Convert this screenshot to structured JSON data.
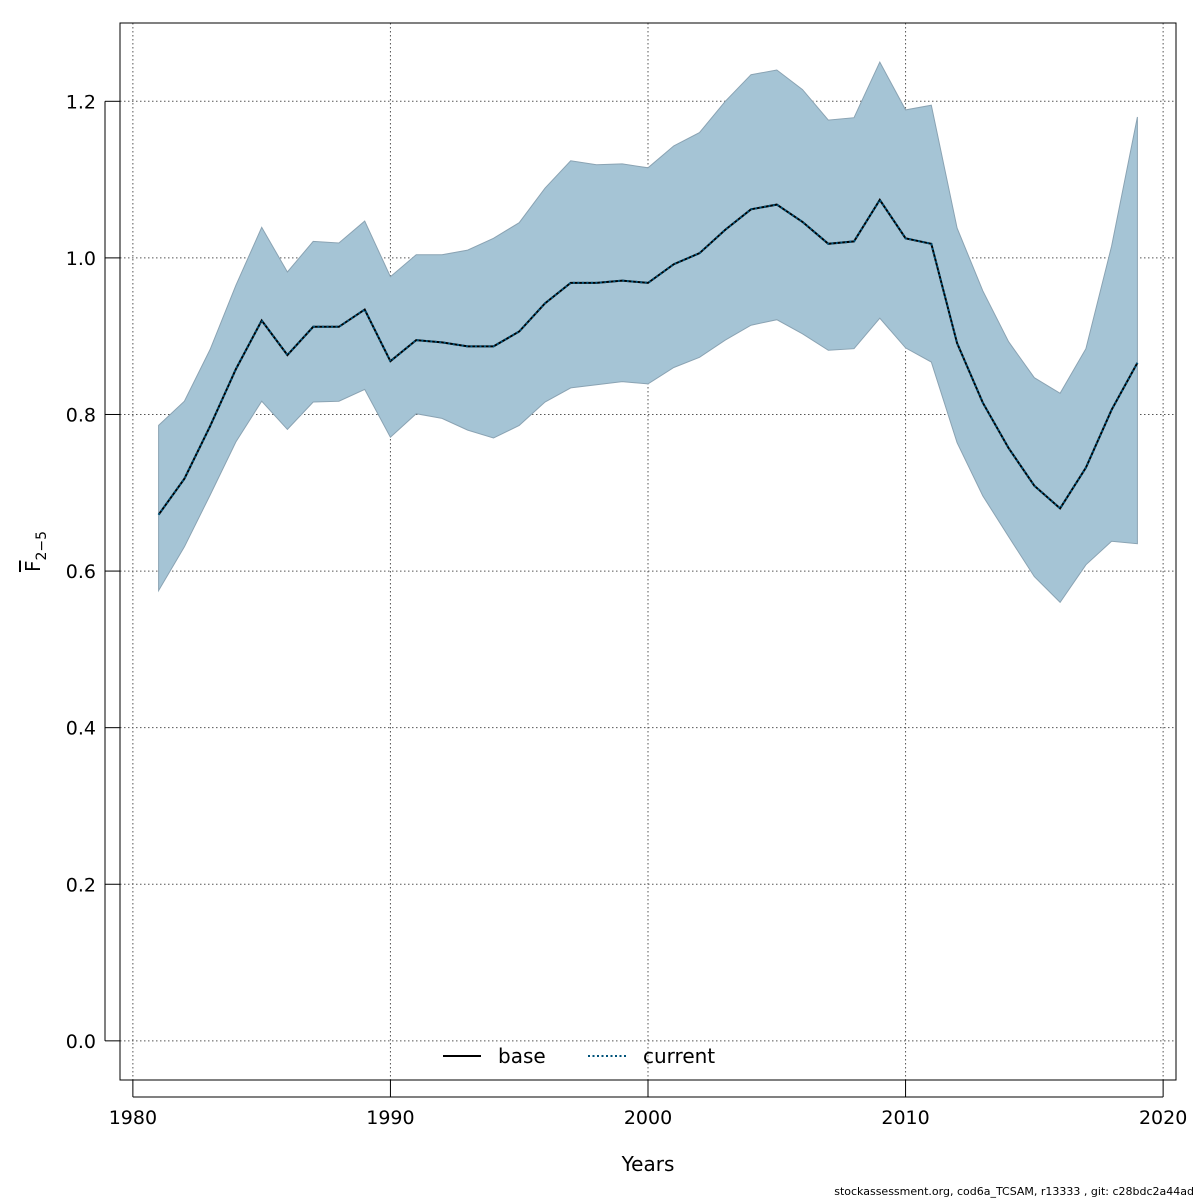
{
  "chart_data": {
    "type": "line",
    "xlabel": "Years",
    "ylabel": {
      "main": "F",
      "sub": "2−5"
    },
    "xlim": [
      1979.5,
      2020.5
    ],
    "ylim": [
      -0.05,
      1.3
    ],
    "x_ticks": [
      1980,
      1990,
      2000,
      2010,
      2020
    ],
    "y_ticks": [
      0.0,
      0.2,
      0.4,
      0.6,
      0.8,
      1.0,
      1.2
    ],
    "x_tick_labels": [
      "1980",
      "1990",
      "2000",
      "2010",
      "2020"
    ],
    "y_tick_labels": [
      "0.0",
      "0.2",
      "0.4",
      "0.6",
      "0.8",
      "1.0",
      "1.2"
    ],
    "grid": true,
    "legend_position": "bottom-center",
    "colors": {
      "band": "#a5c4d5",
      "band_edge": "#8aa3b3",
      "current": "#00537a",
      "base": "#000000",
      "grid": "#555555"
    },
    "x": [
      1981,
      1982,
      1983,
      1984,
      1985,
      1986,
      1987,
      1988,
      1989,
      1990,
      1991,
      1992,
      1993,
      1994,
      1995,
      1996,
      1997,
      1998,
      1999,
      2000,
      2001,
      2002,
      2003,
      2004,
      2005,
      2006,
      2007,
      2008,
      2009,
      2010,
      2011,
      2012,
      2013,
      2014,
      2015,
      2016,
      2017,
      2018,
      2019
    ],
    "series": [
      {
        "name": "base",
        "style": "solid",
        "values": [
          0.672,
          0.718,
          0.785,
          0.858,
          0.92,
          0.876,
          0.912,
          0.912,
          0.934,
          0.868,
          0.895,
          0.892,
          0.887,
          0.887,
          0.906,
          0.942,
          0.968,
          0.968,
          0.971,
          0.968,
          0.992,
          1.006,
          1.036,
          1.062,
          1.068,
          1.046,
          1.018,
          1.021,
          1.074,
          1.025,
          1.018,
          0.891,
          0.815,
          0.757,
          0.709,
          0.68,
          0.732,
          0.806,
          0.866
        ]
      },
      {
        "name": "current",
        "style": "dotted",
        "values": [
          0.672,
          0.718,
          0.785,
          0.858,
          0.92,
          0.876,
          0.912,
          0.912,
          0.934,
          0.868,
          0.895,
          0.892,
          0.887,
          0.887,
          0.906,
          0.942,
          0.968,
          0.968,
          0.971,
          0.968,
          0.992,
          1.006,
          1.036,
          1.062,
          1.068,
          1.046,
          1.018,
          1.021,
          1.074,
          1.025,
          1.018,
          0.891,
          0.815,
          0.757,
          0.709,
          0.68,
          0.732,
          0.806,
          0.866
        ]
      }
    ],
    "interval": {
      "lower": [
        0.575,
        0.631,
        0.697,
        0.765,
        0.817,
        0.781,
        0.816,
        0.817,
        0.832,
        0.771,
        0.801,
        0.795,
        0.78,
        0.77,
        0.786,
        0.816,
        0.834,
        0.838,
        0.842,
        0.839,
        0.86,
        0.873,
        0.895,
        0.914,
        0.921,
        0.903,
        0.882,
        0.884,
        0.923,
        0.885,
        0.867,
        0.764,
        0.696,
        0.644,
        0.593,
        0.56,
        0.608,
        0.638,
        0.635
      ],
      "upper": [
        0.786,
        0.817,
        0.883,
        0.965,
        1.039,
        0.982,
        1.021,
        1.019,
        1.047,
        0.976,
        1.004,
        1.004,
        1.01,
        1.025,
        1.045,
        1.089,
        1.124,
        1.119,
        1.12,
        1.115,
        1.143,
        1.16,
        1.2,
        1.234,
        1.24,
        1.215,
        1.176,
        1.179,
        1.25,
        1.189,
        1.195,
        1.038,
        0.958,
        0.893,
        0.847,
        0.827,
        0.884,
        1.015,
        1.18
      ]
    }
  },
  "footer_text": "stockassessment.org, cod6a_TCSAM, r13333 , git: c28bdc2a44ad"
}
